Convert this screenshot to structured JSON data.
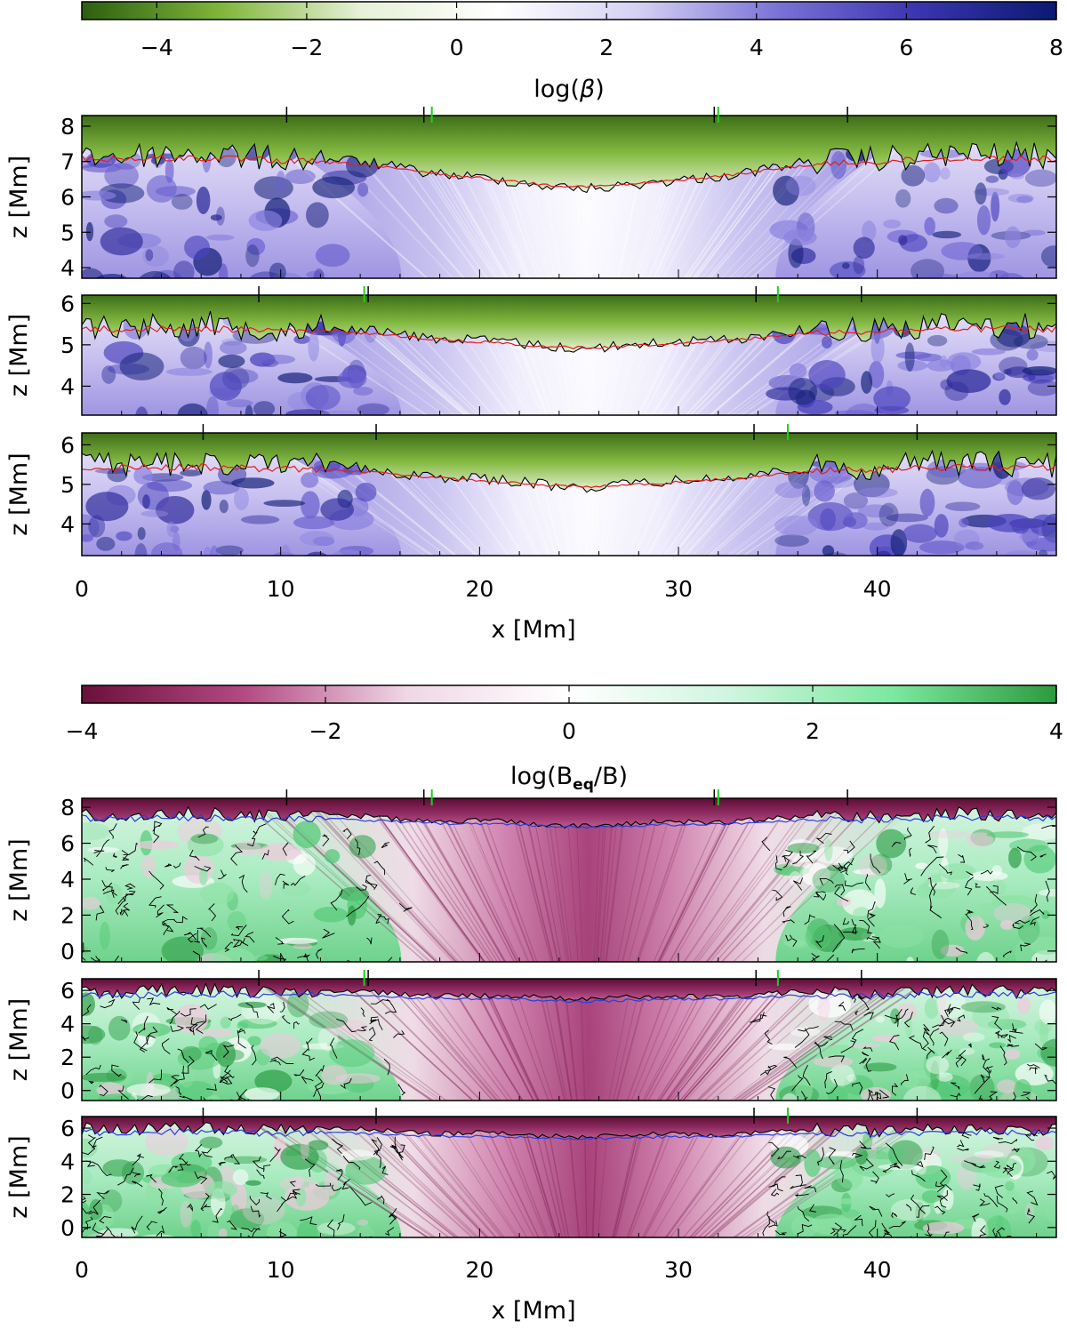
{
  "figure": {
    "top": {
      "colorbar": {
        "title_pre": "log(",
        "title_sym": "β",
        "title_post": ")",
        "ticks": [
          "−4",
          "−2",
          "0",
          "2",
          "4",
          "6",
          "8"
        ],
        "range": [
          -5,
          8
        ],
        "colors": [
          "#2d5e10",
          "#7fb63a",
          "#e6f1d6",
          "#ffffff",
          "#d4d0f2",
          "#7a72d6",
          "#3a35b0",
          "#0a1a72"
        ]
      },
      "panels": [
        {
          "ylabel": "z [Mm]",
          "yticks": [
            "4",
            "5",
            "6",
            "7",
            "8"
          ],
          "ylim": [
            3.7,
            8.3
          ]
        },
        {
          "ylabel": "z [Mm]",
          "yticks": [
            "4",
            "5",
            "6"
          ],
          "ylim": [
            3.3,
            6.2
          ]
        },
        {
          "ylabel": "z [Mm]",
          "yticks": [
            "4",
            "5",
            "6"
          ],
          "ylim": [
            3.2,
            6.3
          ]
        }
      ],
      "xlabel": "x [Mm]",
      "xticks": [
        "0",
        "10",
        "20",
        "30",
        "40"
      ]
    },
    "bottom": {
      "colorbar": {
        "title_pre": "log(B",
        "title_sub": "eq",
        "title_post": "/B)",
        "ticks": [
          "−4",
          "−2",
          "0",
          "2",
          "4"
        ],
        "range": [
          -4,
          4
        ],
        "colors": [
          "#6b0f3a",
          "#b34a83",
          "#f0d7e6",
          "#ffffff",
          "#cff5df",
          "#7be89f",
          "#2e9a3e"
        ]
      },
      "panels": [
        {
          "ylabel": "z [Mm]",
          "yticks": [
            "0",
            "2",
            "4",
            "6",
            "8"
          ],
          "ylim": [
            -0.6,
            8.5
          ]
        },
        {
          "ylabel": "z [Mm]",
          "yticks": [
            "0",
            "2",
            "4",
            "6"
          ],
          "ylim": [
            -0.6,
            6.7
          ]
        },
        {
          "ylabel": "z [Mm]",
          "yticks": [
            "0",
            "2",
            "4",
            "6"
          ],
          "ylim": [
            -0.6,
            6.7
          ]
        }
      ],
      "xlabel": "x [Mm]",
      "xticks": [
        "0",
        "10",
        "20",
        "30",
        "40"
      ]
    }
  },
  "chart_data": {
    "type": "heatmap",
    "x_range": [
      0,
      49
    ],
    "x_unit": "Mm",
    "top_quantity": "log(β)",
    "bottom_quantity": "log(Beq/B)",
    "marker_x": [
      {
        "black": [
          10.3,
          17.2,
          31.8,
          38.5
        ],
        "green": [
          17.6,
          32.0
        ]
      },
      {
        "black": [
          8.9,
          14.4,
          33.9,
          39.2
        ],
        "green": [
          14.2,
          35.0
        ]
      },
      {
        "black": [
          6.1,
          14.8,
          33.8,
          42.0
        ],
        "green": [
          35.5
        ]
      }
    ]
  }
}
